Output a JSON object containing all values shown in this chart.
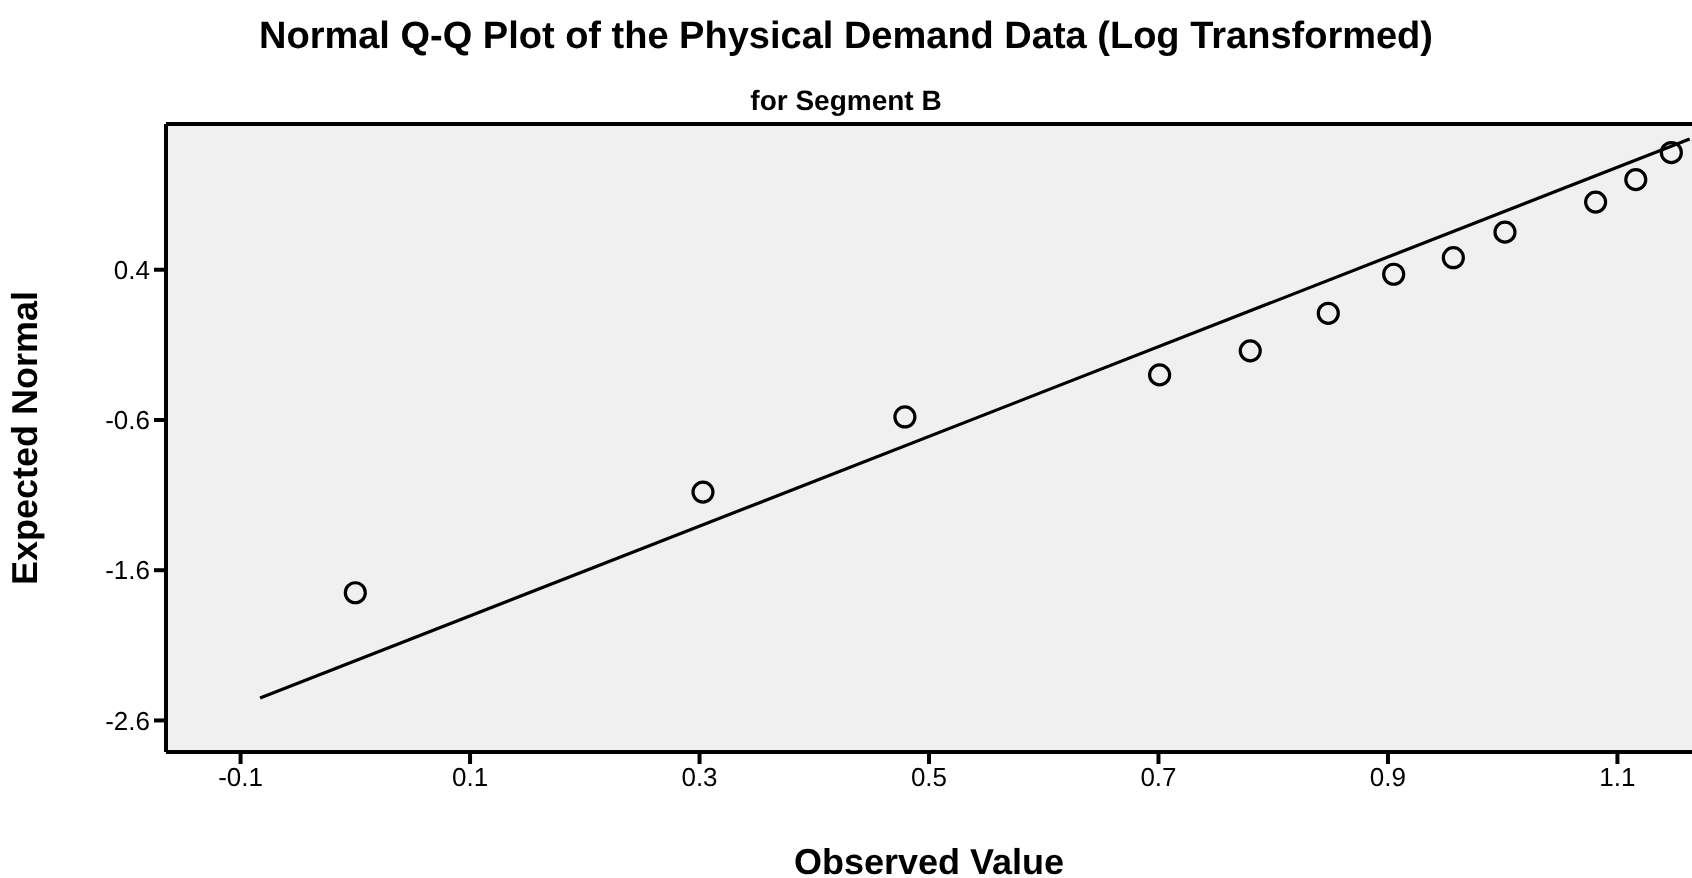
{
  "chart_data": {
    "type": "scatter",
    "title": "Normal Q-Q Plot of the Physical Demand Data (Log Transformed)",
    "subtitle": "for Segment B",
    "xlabel": "Observed Value",
    "ylabel": "Expected Normal",
    "xlim": [
      -0.165,
      1.165
    ],
    "xticks": [
      -0.1,
      0.1,
      0.3,
      0.5,
      0.7,
      0.9,
      1.1
    ],
    "ylim": [
      -2.81,
      1.37
    ],
    "yticks": [
      -2.6,
      -1.6,
      -0.6,
      0.4
    ],
    "grid": false,
    "series": [
      {
        "color": "#000000",
        "marker": "circle",
        "x": [
          0.0,
          0.303,
          0.479,
          0.701,
          0.78,
          0.848,
          0.905,
          0.957,
          1.002,
          1.081,
          1.116,
          1.147
        ],
        "values": [
          -1.75,
          -1.08,
          -0.58,
          -0.3,
          -0.14,
          0.11,
          0.37,
          0.48,
          0.65,
          0.85,
          1.0,
          1.18
        ]
      },
      {
        "type": "line",
        "color": "#000000",
        "line_style": "solid",
        "x": [
          -0.083,
          1.163
        ],
        "values": [
          -2.45,
          1.27
        ]
      }
    ]
  }
}
